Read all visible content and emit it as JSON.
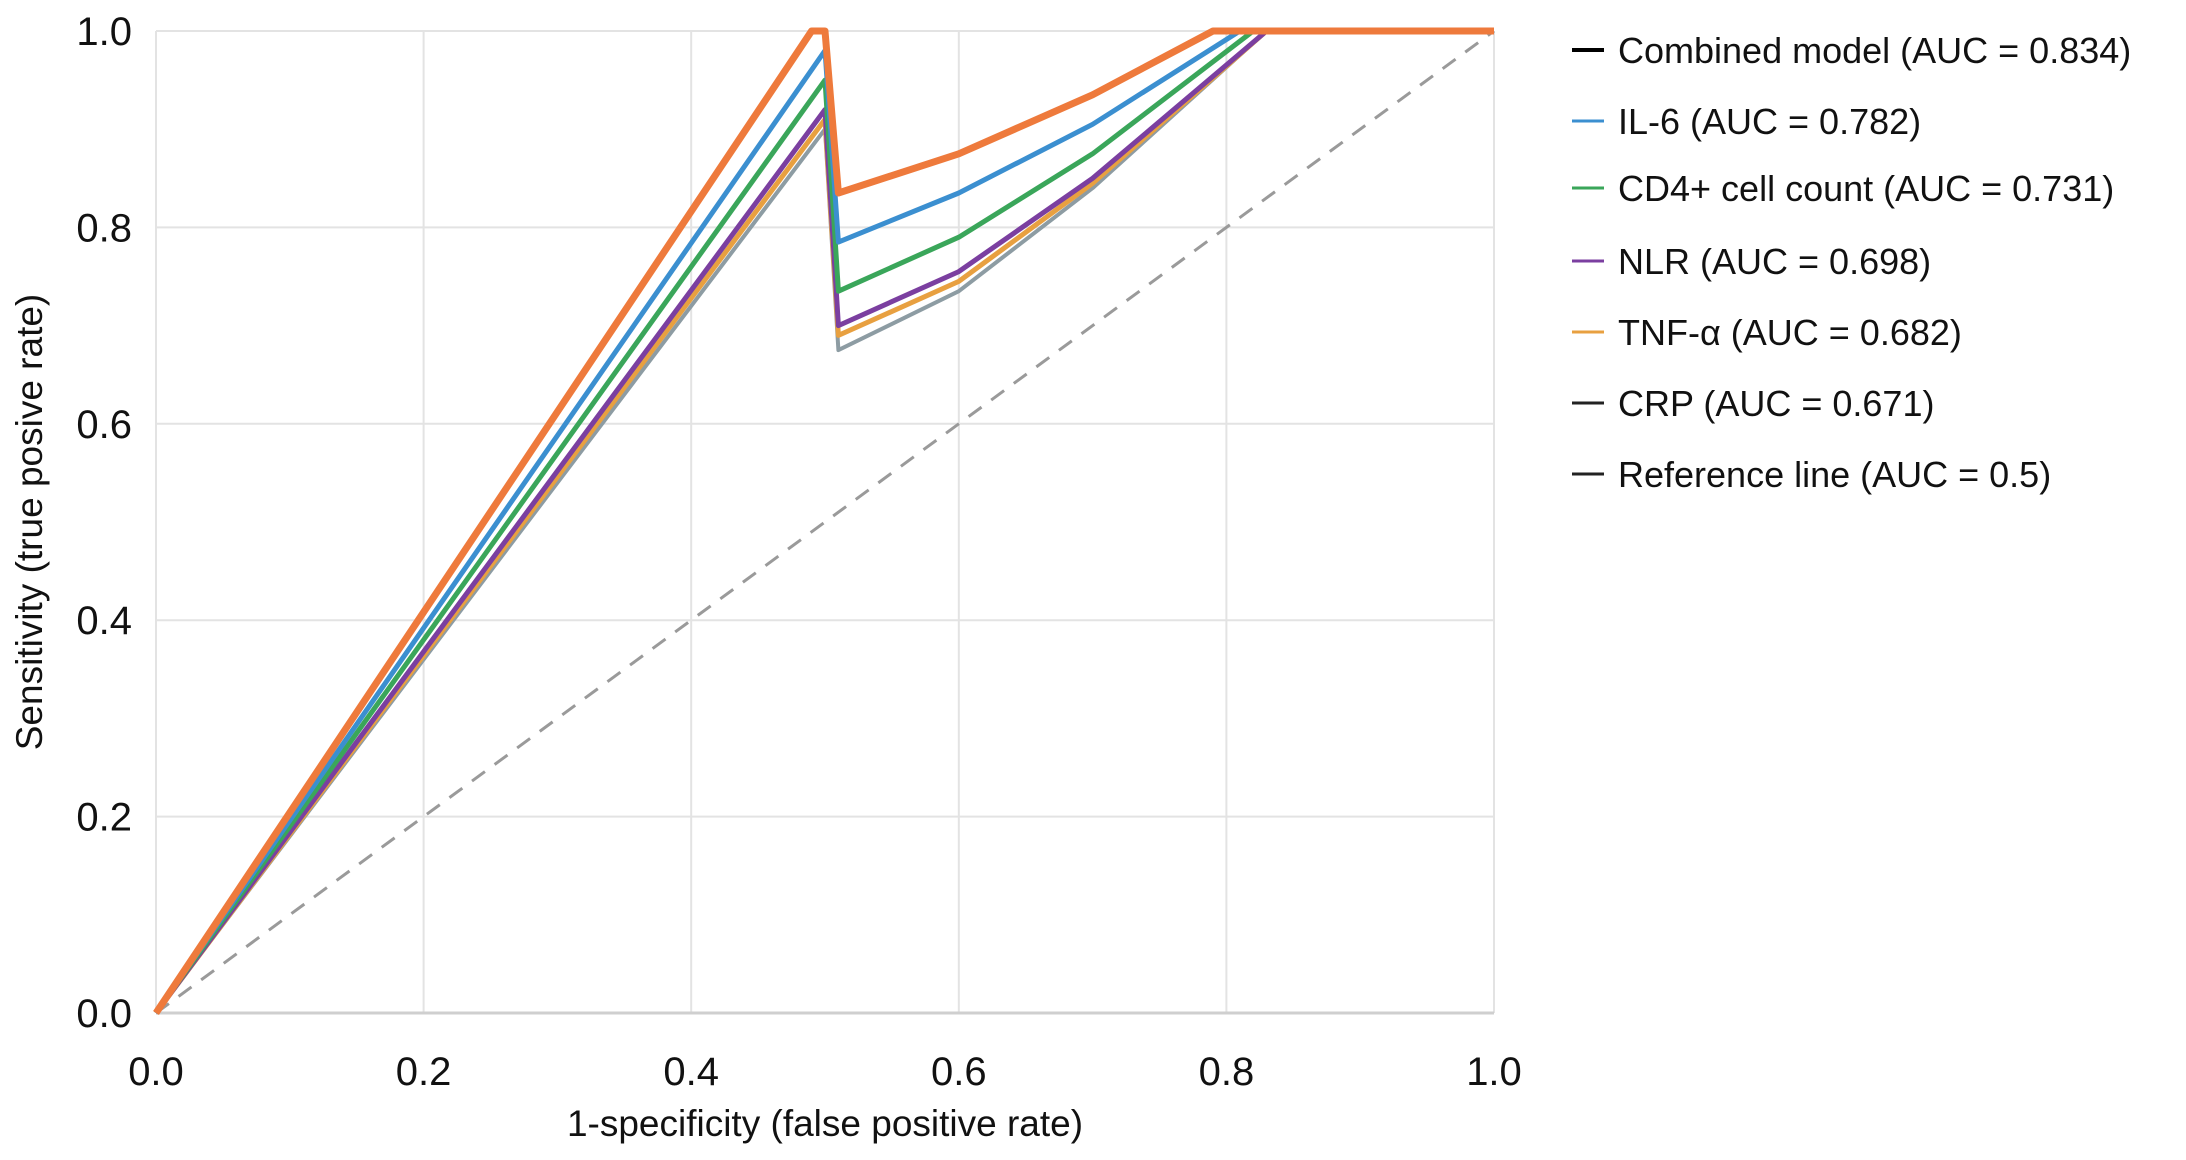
{
  "chart_data": {
    "type": "line",
    "title": "",
    "xlabel": "1-specificity (false positive rate)",
    "ylabel": "Sensitivity (true posive rate)",
    "xlim": [
      0,
      1
    ],
    "ylim": [
      0,
      1
    ],
    "grid": true,
    "legend_placement": "right",
    "xticks": [
      "0.0",
      "0.2",
      "0.4",
      "0.6",
      "0.8",
      "1.0"
    ],
    "yticks": [
      "0.0",
      "0.2",
      "0.4",
      "0.6",
      "0.8",
      "1.0"
    ],
    "series": [
      {
        "name": "Combined model (AUC = 0.834)",
        "color": "#ee7a3c",
        "legend_color": "#000000",
        "width": 7,
        "x": [
          0,
          0.49,
          0.5,
          0.51,
          0.6,
          0.7,
          0.79,
          1.0
        ],
        "y": [
          0,
          1.0,
          1.0,
          0.835,
          0.875,
          0.935,
          1.0,
          1.0
        ]
      },
      {
        "name": "IL-6 (AUC = 0.782)",
        "color": "#3b8fd0",
        "legend_color": "#3b8fd0",
        "width": 5,
        "x": [
          0,
          0.5,
          0.51,
          0.6,
          0.7,
          0.81,
          1.0
        ],
        "y": [
          0,
          0.98,
          0.785,
          0.835,
          0.905,
          1.0,
          1.0
        ]
      },
      {
        "name": "CD4+ cell count (AUC = 0.731)",
        "color": "#3aa65a",
        "legend_color": "#3aa65a",
        "width": 5,
        "x": [
          0,
          0.5,
          0.51,
          0.6,
          0.7,
          0.82,
          1.0
        ],
        "y": [
          0,
          0.95,
          0.735,
          0.79,
          0.875,
          1.0,
          1.0
        ]
      },
      {
        "name": "NLR (AUC = 0.698)",
        "color": "#7b3fa0",
        "legend_color": "#7b3fa0",
        "width": 5,
        "x": [
          0,
          0.5,
          0.51,
          0.6,
          0.7,
          0.83,
          1.0
        ],
        "y": [
          0,
          0.92,
          0.7,
          0.755,
          0.85,
          1.0,
          1.0
        ]
      },
      {
        "name": "TNF-α (AUC = 0.682)",
        "color": "#e8a040",
        "legend_color": "#e8a040",
        "width": 5,
        "x": [
          0,
          0.5,
          0.51,
          0.6,
          0.7,
          0.83,
          1.0
        ],
        "y": [
          0,
          0.91,
          0.69,
          0.745,
          0.845,
          1.0,
          1.0
        ]
      },
      {
        "name": "CRP (AUC = 0.671)",
        "color": "#8d9ca3",
        "legend_color": "#222222",
        "width": 4,
        "x": [
          0,
          0.5,
          0.51,
          0.6,
          0.7,
          0.83,
          1.0
        ],
        "y": [
          0,
          0.9,
          0.675,
          0.735,
          0.84,
          1.0,
          1.0
        ]
      },
      {
        "name": "Reference line (AUC = 0.5)",
        "color": "#9a9a9a",
        "legend_color": "#222222",
        "width": 3,
        "dashed": true,
        "x": [
          0,
          1.0
        ],
        "y": [
          0,
          1.0
        ]
      }
    ]
  }
}
